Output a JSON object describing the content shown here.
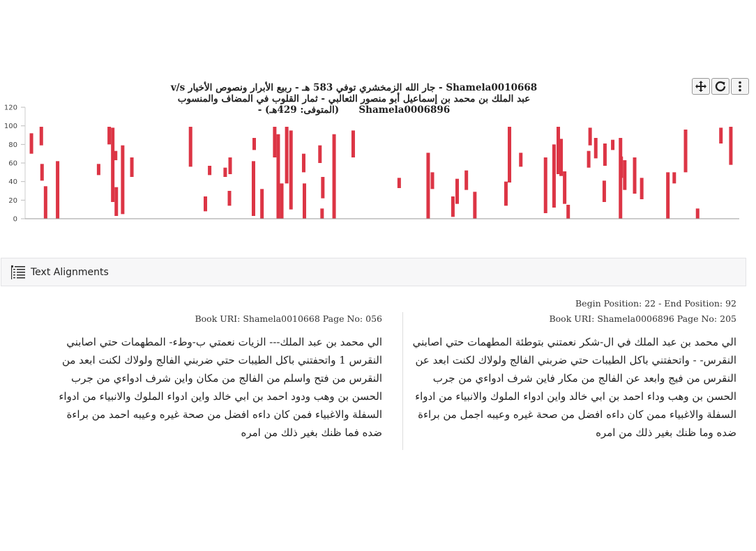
{
  "chart_title": {
    "left_part": "Shamela0010668 - جار الله الزمخشري توفي 583 هـ - ربيع الأبرار ونصوص الأخيار",
    "vs": "v/s",
    "right_part": "عبد الملك بن محمد بن إسماعيل أبو منصور الثعالبي - ثمار القلوب في المضاف والمنسوب",
    "line2_a": "Shamela0006896",
    "line2_b": "(المتوفى: 429هـ) -"
  },
  "toolbar": {
    "icons": [
      "move-icon",
      "reset-icon",
      "menu-icon"
    ]
  },
  "chart_data": {
    "type": "bar",
    "title": "",
    "xlabel": "",
    "ylabel": "",
    "ylim": [
      0,
      120
    ],
    "yticks": [
      0,
      20,
      40,
      60,
      80,
      100,
      120
    ],
    "xlim": [
      0,
      1000
    ],
    "bar_color": "#dc3545",
    "grid": false,
    "bars": [
      {
        "x": 5,
        "y0": 70,
        "y1": 92
      },
      {
        "x": 19,
        "y0": 79,
        "y1": 99
      },
      {
        "x": 20,
        "y0": 41,
        "y1": 59
      },
      {
        "x": 25,
        "y0": 0,
        "y1": 35
      },
      {
        "x": 42,
        "y0": 0,
        "y1": 62
      },
      {
        "x": 100,
        "y0": 47,
        "y1": 59
      },
      {
        "x": 115,
        "y0": 80,
        "y1": 99
      },
      {
        "x": 120,
        "y0": 18,
        "y1": 98
      },
      {
        "x": 124,
        "y0": 63,
        "y1": 73
      },
      {
        "x": 125,
        "y0": 3,
        "y1": 34
      },
      {
        "x": 134,
        "y0": 5,
        "y1": 79
      },
      {
        "x": 147,
        "y0": 45,
        "y1": 66
      },
      {
        "x": 230,
        "y0": 56,
        "y1": 99
      },
      {
        "x": 251,
        "y0": 8,
        "y1": 24
      },
      {
        "x": 257,
        "y0": 47,
        "y1": 57
      },
      {
        "x": 279,
        "y0": 45,
        "y1": 55
      },
      {
        "x": 285,
        "y0": 14,
        "y1": 30
      },
      {
        "x": 286,
        "y0": 48,
        "y1": 66
      },
      {
        "x": 319,
        "y0": 3,
        "y1": 62
      },
      {
        "x": 320,
        "y0": 74,
        "y1": 87
      },
      {
        "x": 331,
        "y0": 0,
        "y1": 32
      },
      {
        "x": 349,
        "y0": 66,
        "y1": 99
      },
      {
        "x": 354,
        "y0": 0,
        "y1": 91
      },
      {
        "x": 359,
        "y0": 0,
        "y1": 38
      },
      {
        "x": 366,
        "y0": 38,
        "y1": 99
      },
      {
        "x": 372,
        "y0": 10,
        "y1": 95
      },
      {
        "x": 390,
        "y0": 50,
        "y1": 70
      },
      {
        "x": 391,
        "y0": 0,
        "y1": 38
      },
      {
        "x": 413,
        "y0": 60,
        "y1": 79
      },
      {
        "x": 416,
        "y0": 0,
        "y1": 11
      },
      {
        "x": 417,
        "y0": 22,
        "y1": 45
      },
      {
        "x": 433,
        "y0": 0,
        "y1": 91
      },
      {
        "x": 460,
        "y0": 66,
        "y1": 95
      },
      {
        "x": 525,
        "y0": 33,
        "y1": 44
      },
      {
        "x": 566,
        "y0": 0,
        "y1": 71
      },
      {
        "x": 572,
        "y0": 32,
        "y1": 50
      },
      {
        "x": 601,
        "y0": 2,
        "y1": 24
      },
      {
        "x": 607,
        "y0": 16,
        "y1": 43
      },
      {
        "x": 620,
        "y0": 31,
        "y1": 52
      },
      {
        "x": 632,
        "y0": 0,
        "y1": 29
      },
      {
        "x": 676,
        "y0": 14,
        "y1": 40
      },
      {
        "x": 681,
        "y0": 39,
        "y1": 99
      },
      {
        "x": 697,
        "y0": 56,
        "y1": 71
      },
      {
        "x": 732,
        "y0": 6,
        "y1": 66
      },
      {
        "x": 744,
        "y0": 12,
        "y1": 80
      },
      {
        "x": 750,
        "y0": 48,
        "y1": 99
      },
      {
        "x": 754,
        "y0": 46,
        "y1": 86
      },
      {
        "x": 759,
        "y0": 16,
        "y1": 51
      },
      {
        "x": 764,
        "y0": 0,
        "y1": 15
      },
      {
        "x": 793,
        "y0": 55,
        "y1": 73
      },
      {
        "x": 795,
        "y0": 79,
        "y1": 98
      },
      {
        "x": 803,
        "y0": 65,
        "y1": 87
      },
      {
        "x": 815,
        "y0": 18,
        "y1": 41
      },
      {
        "x": 816,
        "y0": 57,
        "y1": 81
      },
      {
        "x": 827,
        "y0": 74,
        "y1": 85
      },
      {
        "x": 838,
        "y0": 0,
        "y1": 87
      },
      {
        "x": 839,
        "y0": 44,
        "y1": 67
      },
      {
        "x": 844,
        "y0": 31,
        "y1": 63
      },
      {
        "x": 858,
        "y0": 27,
        "y1": 66
      },
      {
        "x": 868,
        "y0": 21,
        "y1": 44
      },
      {
        "x": 905,
        "y0": 0,
        "y1": 50
      },
      {
        "x": 914,
        "y0": 38,
        "y1": 50
      },
      {
        "x": 930,
        "y0": 50,
        "y1": 96
      },
      {
        "x": 947,
        "y0": 0,
        "y1": 11
      },
      {
        "x": 980,
        "y0": 81,
        "y1": 98
      },
      {
        "x": 994,
        "y0": 58,
        "y1": 99
      }
    ]
  },
  "alignments": {
    "icon": "list-icon",
    "label": "Text Alignments"
  },
  "positions": "Begin Position: 22 - End Position: 92",
  "left_panel": {
    "uri_label": "Book URI:",
    "uri": "Shamela0010668",
    "page_label": "Page No:",
    "page": "056",
    "text": "الي محمد بن عبد الملك--- الزيات نعمتي ب-وطء- المطهمات حتي اصابني النقرس 1 واتحفتني باكل الطيبات حتي ضربني الفالج ولولاك لكنت ابعد من النقرس من فتح واسلم من الفالج من مكان واين شرف ادواءي من جرب الحسن بن وهب ودود احمد بن ابي خالد واين ادواء الملوك والانبياء من ادواء السفلة والاغبياء فمن كان داءه افضل من صحة غيره وعيبه احمد من براءة ضده فما ظنك بغير ذلك من امره"
  },
  "right_panel": {
    "uri_label": "Book URI:",
    "uri": "Shamela0006896",
    "page_label": "Page No:",
    "page": "205",
    "text": "الي محمد بن عبد الملك في ال-شكر نعمتني بتوطئة المطهمات حتي اصابني النقرس- - واتحفتني باكل الطيبات حتي ضربني الفالج ولولاك لكنت ابعد عن النقرس من فيج وابعد عن الفالج من مكار فاين شرف ادواءي من جرب الحسن بن وهب وداء احمد بن ابي خالد واين ادواء الملوك والانبياء من ادواء السفلة والاغبياء ممن كان داءه افضل من صحة غيره وعيبه اجمل من براءة ضده وما ظنك بغير ذلك من امره"
  }
}
